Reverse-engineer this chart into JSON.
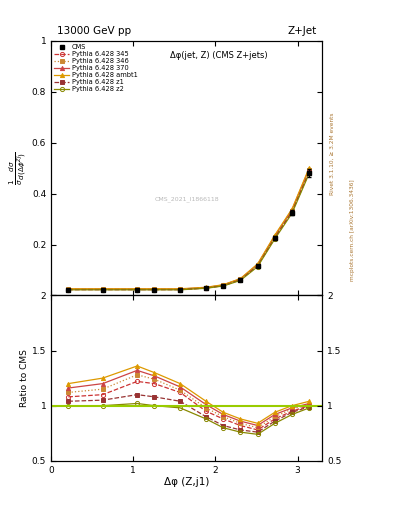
{
  "title_left": "13000 GeV pp",
  "title_right": "Z+Jet",
  "subtitle": "Δφ(jet, Z) (CMS Z+jets)",
  "xlabel": "Δφ (Z,j1)",
  "ylabel_ratio": "Ratio to CMS",
  "right_label_top": "Rivet 3.1.10, ≥ 3.2M events",
  "right_label_bot": "mcplots.cern.ch [arXiv:1306.3436]",
  "watermark": "CMS_2021_I1866118",
  "x_data": [
    0.2094,
    0.6283,
    1.0472,
    1.2566,
    1.5708,
    1.885,
    2.0944,
    2.3038,
    2.5133,
    2.7227,
    2.9322,
    3.1416
  ],
  "cms_y": [
    0.022,
    0.022,
    0.022,
    0.022,
    0.022,
    0.028,
    0.038,
    0.06,
    0.115,
    0.225,
    0.325,
    0.48
  ],
  "cms_yerr": [
    0.001,
    0.001,
    0.001,
    0.001,
    0.001,
    0.002,
    0.002,
    0.003,
    0.005,
    0.008,
    0.01,
    0.015
  ],
  "p345_y": [
    0.023,
    0.023,
    0.023,
    0.023,
    0.023,
    0.029,
    0.039,
    0.062,
    0.118,
    0.228,
    0.33,
    0.488
  ],
  "p346_y": [
    0.024,
    0.024,
    0.024,
    0.024,
    0.024,
    0.03,
    0.04,
    0.063,
    0.12,
    0.231,
    0.333,
    0.492
  ],
  "p370_y": [
    0.025,
    0.025,
    0.025,
    0.025,
    0.025,
    0.031,
    0.041,
    0.065,
    0.122,
    0.234,
    0.337,
    0.498
  ],
  "pambt1_y": [
    0.026,
    0.026,
    0.026,
    0.026,
    0.026,
    0.032,
    0.042,
    0.066,
    0.124,
    0.237,
    0.34,
    0.502
  ],
  "pz1_y": [
    0.023,
    0.023,
    0.023,
    0.023,
    0.023,
    0.029,
    0.038,
    0.061,
    0.116,
    0.226,
    0.328,
    0.485
  ],
  "pz2_y": [
    0.022,
    0.022,
    0.022,
    0.022,
    0.022,
    0.028,
    0.037,
    0.059,
    0.113,
    0.222,
    0.323,
    0.48
  ],
  "r345": [
    1.08,
    1.1,
    1.22,
    1.2,
    1.12,
    0.95,
    0.88,
    0.82,
    0.78,
    0.88,
    0.95,
    1.0
  ],
  "r346": [
    1.12,
    1.15,
    1.28,
    1.24,
    1.14,
    0.98,
    0.9,
    0.84,
    0.8,
    0.9,
    0.97,
    1.01
  ],
  "r370": [
    1.16,
    1.2,
    1.32,
    1.27,
    1.17,
    1.01,
    0.92,
    0.86,
    0.82,
    0.92,
    0.98,
    1.02
  ],
  "rambt1": [
    1.2,
    1.25,
    1.36,
    1.3,
    1.2,
    1.04,
    0.94,
    0.88,
    0.84,
    0.94,
    1.0,
    1.04
  ],
  "rz1": [
    1.04,
    1.05,
    1.1,
    1.08,
    1.04,
    0.9,
    0.82,
    0.78,
    0.76,
    0.86,
    0.94,
    0.99
  ],
  "rz2": [
    1.0,
    1.0,
    1.02,
    1.0,
    0.98,
    0.88,
    0.8,
    0.76,
    0.74,
    0.84,
    0.92,
    0.98
  ],
  "color_345": "#cc3333",
  "color_346": "#cc8833",
  "color_370": "#cc4444",
  "color_ambt1": "#dd9900",
  "color_z1": "#993333",
  "color_z2": "#888800",
  "ylim_main": [
    0.0,
    0.6
  ],
  "ylim_ratio": [
    0.5,
    2.0
  ],
  "bg_color": "#ffffff"
}
